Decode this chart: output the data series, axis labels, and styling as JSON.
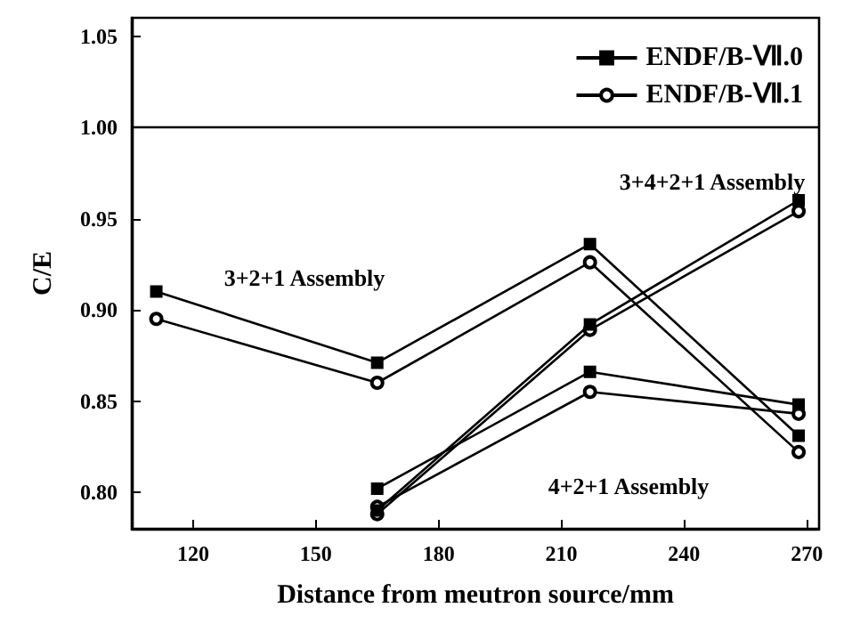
{
  "chart_data": {
    "type": "line",
    "xlabel": "Distance from meutron source/mm",
    "ylabel": "C/E",
    "xlim": [
      105,
      273
    ],
    "xticks": [
      120,
      150,
      180,
      210,
      240,
      270
    ],
    "ylim": [
      0.78,
      1.06
    ],
    "yticks": [
      {
        "value": 0.8,
        "label": "0.80"
      },
      {
        "value": 0.85,
        "label": "0.85"
      },
      {
        "value": 0.9,
        "label": "0.90"
      },
      {
        "value": 0.95,
        "label": "0.95"
      },
      {
        "value": 1.0,
        "label": "1.00"
      },
      {
        "value": 1.05,
        "label": "1.05"
      }
    ],
    "grid": false,
    "legend": "top right",
    "line_style": "solid",
    "series": [
      {
        "name": "ENDF/B-Ⅶ.0",
        "color": "#000000",
        "marker": "square",
        "x": [
          111,
          165,
          217,
          268
        ],
        "values": [
          0.91,
          0.871,
          0.936,
          0.831
        ]
      },
      {
        "name": "ENDF/B-Ⅶ.1",
        "color": "#000000",
        "marker": "circle",
        "x": [
          111,
          165,
          217,
          268
        ],
        "values": [
          0.895,
          0.86,
          0.926,
          0.822
        ]
      },
      {
        "color": "#000000",
        "marker": "square",
        "x": [
          165,
          217,
          268
        ],
        "values": [
          0.79,
          0.892,
          0.96
        ]
      },
      {
        "color": "#000000",
        "marker": "circle",
        "x": [
          165,
          217,
          268
        ],
        "values": [
          0.788,
          0.889,
          0.954
        ]
      },
      {
        "color": "#000000",
        "marker": "square",
        "x": [
          165,
          217,
          268
        ],
        "values": [
          0.802,
          0.866,
          0.848
        ]
      },
      {
        "color": "#000000",
        "marker": "circle",
        "x": [
          165,
          217,
          268
        ],
        "values": [
          0.792,
          0.855,
          0.843
        ]
      }
    ],
    "ref_lines": [
      {
        "axis": "y",
        "value": 1.0,
        "color": "#000000",
        "line_style": "solid"
      }
    ],
    "annotations": [
      "3+2+1 Assembly",
      "3+4+2+1 Assembly",
      "4+2+1 Assembly"
    ]
  }
}
